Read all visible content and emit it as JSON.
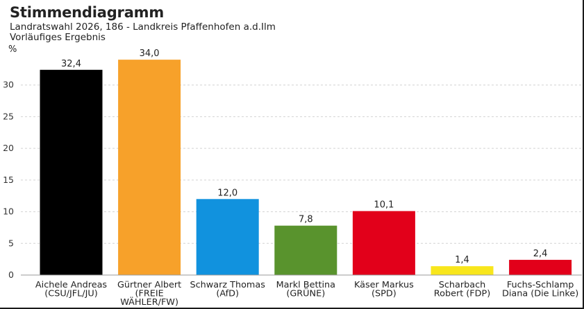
{
  "chart_data": {
    "type": "bar",
    "title": "Stimmendiagramm",
    "subtitle": "Landratswahl 2026, 186 - Landkreis Pfaffenhofen a.d.Ilm",
    "note": "Vorläufiges Ergebnis",
    "ylabel": "%",
    "ylim": [
      0,
      35
    ],
    "yticks": [
      {
        "value": 0,
        "label": "0"
      },
      {
        "value": 5,
        "label": "5"
      },
      {
        "value": 10,
        "label": "10"
      },
      {
        "value": 15,
        "label": "15"
      },
      {
        "value": 20,
        "label": "20"
      },
      {
        "value": 25,
        "label": "25"
      },
      {
        "value": 30,
        "label": "30"
      }
    ],
    "grid": true,
    "categories": [
      [
        "Aichele Andreas",
        "(CSU/JFL/JU)"
      ],
      [
        "Gürtner Albert",
        "(FREIE",
        "WÄHLER/FW)"
      ],
      [
        "Schwarz Thomas",
        "(AfD)"
      ],
      [
        "Markl Bettina",
        "(GRÜNE)"
      ],
      [
        "Käser Markus",
        "(SPD)"
      ],
      [
        "Scharbach",
        "Robert (FDP)"
      ],
      [
        "Fuchs-Schlamp",
        "Diana (Die Linke)"
      ]
    ],
    "values": [
      32.4,
      34.0,
      12.0,
      7.8,
      10.1,
      1.4,
      2.4
    ],
    "value_labels": [
      "32,4",
      "34,0",
      "12,0",
      "7,8",
      "10,1",
      "1,4",
      "2,4"
    ],
    "colors": [
      "#000000",
      "#f7a12a",
      "#1192de",
      "#59932d",
      "#e2001a",
      "#f8e61c",
      "#e2001a"
    ]
  }
}
